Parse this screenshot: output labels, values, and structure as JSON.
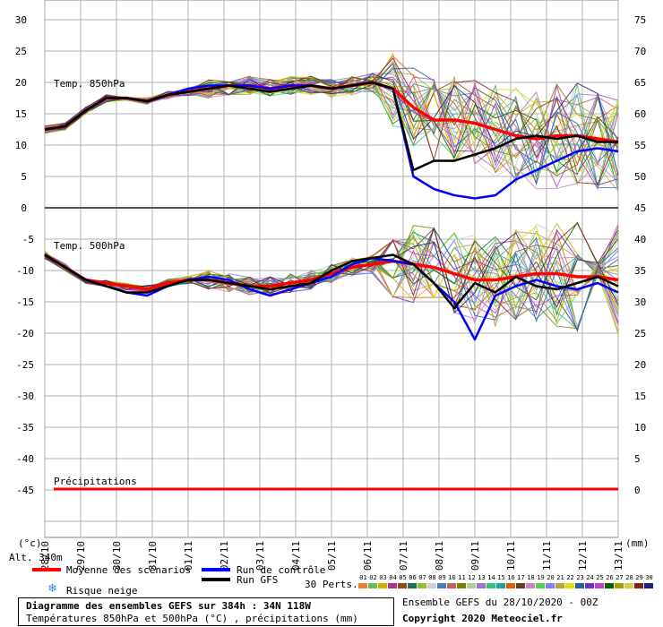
{
  "chart_data": {
    "type": "line",
    "panels": [
      {
        "name": "Temp. 850hPa",
        "y_range": [
          0,
          30
        ],
        "y_ticks_left": [
          30,
          25,
          20,
          15,
          10,
          5,
          0
        ],
        "y_ticks_right": [
          75,
          70,
          65,
          60,
          55,
          50,
          45
        ]
      },
      {
        "name": "Temp. 500hPa",
        "y_range": [
          -45,
          -5
        ],
        "y_ticks_left": [
          -5,
          -10,
          -15,
          -20,
          -25,
          -30,
          -35,
          -40,
          -45
        ],
        "y_ticks_right": [
          40,
          35,
          30,
          25,
          20,
          15,
          10,
          5,
          0
        ],
        "precip_label": "Précipitations"
      }
    ],
    "x_labels": [
      "28/10",
      "29/10",
      "30/10",
      "31/10",
      "01/11",
      "02/11",
      "03/11",
      "04/11",
      "05/11",
      "06/11",
      "07/11",
      "08/11",
      "09/11",
      "10/11",
      "11/11",
      "12/11",
      "13/11"
    ],
    "series": [
      {
        "name": "Moyenne des scénarios",
        "panel": 0,
        "color": "#ff0000",
        "values": [
          12.5,
          13,
          15.5,
          17.5,
          17.5,
          17,
          18,
          18.5,
          19,
          19.5,
          19.5,
          19,
          19.5,
          19.5,
          19,
          19.5,
          20,
          19,
          16,
          14,
          14,
          13.5,
          12.5,
          11.5,
          11,
          11.5,
          11.5,
          11,
          10.5
        ]
      },
      {
        "name": "Run de contrôle",
        "panel": 0,
        "color": "#0000ff",
        "values": [
          12.5,
          13,
          15.5,
          17.5,
          17.5,
          17,
          18,
          19,
          19.5,
          19.5,
          19.5,
          19,
          19.5,
          19.5,
          19,
          19.5,
          20,
          19,
          5,
          3,
          2,
          1.5,
          2,
          4.5,
          6,
          7.5,
          9,
          9.5,
          9
        ]
      },
      {
        "name": "Run GFS",
        "panel": 0,
        "color": "#000000",
        "values": [
          12.5,
          13,
          15.5,
          17.5,
          17.5,
          17,
          18,
          18.5,
          19,
          19.5,
          19,
          18.5,
          19,
          19.5,
          19,
          19.5,
          20,
          19,
          6,
          7.5,
          7.5,
          8.5,
          9.5,
          11,
          11.5,
          11,
          11.5,
          10.5,
          10.5
        ]
      },
      {
        "name": "Moyenne des scénarios",
        "panel": 1,
        "color": "#ff0000",
        "values": [
          -7.5,
          -9.5,
          -11.5,
          -12,
          -12.5,
          -13,
          -12,
          -11.5,
          -11.5,
          -12,
          -12.5,
          -12.5,
          -12,
          -11.5,
          -10.5,
          -9.5,
          -9,
          -8.5,
          -9,
          -9.5,
          -10.5,
          -11.5,
          -11.5,
          -11,
          -10.5,
          -10.5,
          -11,
          -11,
          -11.5
        ]
      },
      {
        "name": "Run de contrôle",
        "panel": 1,
        "color": "#0000ff",
        "values": [
          -7.5,
          -9.5,
          -11.5,
          -12.5,
          -13.5,
          -14,
          -12.5,
          -11.5,
          -11,
          -11.5,
          -13,
          -14,
          -13,
          -12,
          -11,
          -9,
          -8,
          -8.5,
          -9,
          -12,
          -15,
          -21,
          -14,
          -12.5,
          -11.5,
          -12.5,
          -13,
          -12,
          -13.5
        ]
      },
      {
        "name": "Run GFS",
        "panel": 1,
        "color": "#000000",
        "values": [
          -7.5,
          -9.5,
          -11.5,
          -12.5,
          -13.5,
          -13.5,
          -12.5,
          -11.5,
          -11.5,
          -12,
          -12.5,
          -13,
          -12.5,
          -12,
          -10,
          -8.5,
          -8,
          -7.5,
          -9,
          -12,
          -16,
          -12,
          -13.5,
          -11,
          -12.5,
          -13,
          -12,
          -11,
          -12.5
        ]
      }
    ],
    "legend": {
      "mean": "Moyenne des scénarios",
      "control": "Run de contrôle",
      "gfs": "Run GFS",
      "snow": "Risque neige",
      "perts_label": "30 Perts.",
      "perts": [
        "01",
        "02",
        "03",
        "04",
        "05",
        "06",
        "07",
        "08",
        "09",
        "10",
        "11",
        "12",
        "13",
        "14",
        "15",
        "16",
        "17",
        "18",
        "19",
        "20",
        "21",
        "22",
        "23",
        "24",
        "25",
        "26",
        "27",
        "28",
        "29",
        "30"
      ],
      "pert_colors": [
        "#f08030",
        "#60c060",
        "#d0b000",
        "#b03090",
        "#8a4b10",
        "#207050",
        "#90c030",
        "#d0d0d0",
        "#4080c0",
        "#c06060",
        "#808000",
        "#b0d090",
        "#a070d0",
        "#30c080",
        "#20a0a0",
        "#e06000",
        "#604020",
        "#d080c0",
        "#50d050",
        "#8080ff",
        "#c0a040",
        "#e0e000",
        "#2060a0",
        "#7030c0",
        "#c040c0",
        "#006000",
        "#a0a000",
        "#d0d040",
        "#802020",
        "#202080"
      ]
    },
    "axis_unit_left": "(°c)",
    "axis_unit_right": "(mm)",
    "altitude": "Alt. 340m"
  },
  "footer": {
    "title": "Diagramme des ensembles GEFS sur 384h : 34N 118W",
    "subtitle": "Températures 850hPa et 500hPa (°C) , précipitations (mm)",
    "run_info": "Ensemble GEFS du 28/10/2020 - 00Z",
    "copyright": "Copyright 2020 Meteociel.fr"
  }
}
